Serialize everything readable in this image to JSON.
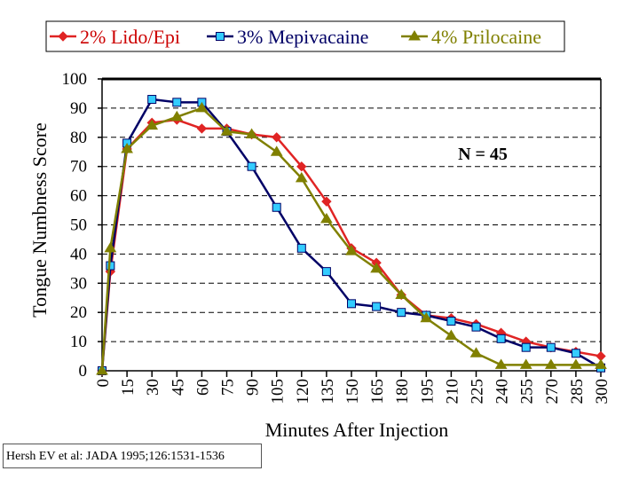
{
  "chart_data": {
    "type": "line",
    "xlabel": "Minutes After Injection",
    "ylabel": "Tongue Numbness Score",
    "ylim": [
      0,
      100
    ],
    "xlim": [
      0,
      300
    ],
    "yticks": [
      "0",
      "10",
      "20",
      "30",
      "40",
      "50",
      "60",
      "70",
      "80",
      "90",
      "100"
    ],
    "xticks": [
      "0",
      "15",
      "30",
      "45",
      "60",
      "75",
      "90",
      "105",
      "120",
      "135",
      "150",
      "165",
      "180",
      "195",
      "210",
      "225",
      "240",
      "255",
      "270",
      "285",
      "300"
    ],
    "grid": "horizontal dashed",
    "legend_position": "top",
    "annotation": "N = 45",
    "x": [
      0,
      5,
      15,
      30,
      45,
      60,
      75,
      90,
      105,
      120,
      135,
      150,
      165,
      180,
      195,
      210,
      225,
      240,
      255,
      270,
      285,
      300
    ],
    "series": [
      {
        "name": "2% Lido/Epi",
        "line_color": "#e02424",
        "marker_color": "#e02424",
        "marker": "diamond",
        "values": [
          0,
          34,
          76,
          85,
          86,
          83,
          83,
          81,
          80,
          70,
          58,
          42,
          37,
          26,
          19,
          18,
          16,
          13,
          10,
          8,
          6.5,
          5
        ]
      },
      {
        "name": "3% Mepivacaine",
        "line_color": "#000066",
        "marker_color": "#33ccff",
        "marker": "square",
        "values": [
          0,
          36,
          78,
          93,
          92,
          92,
          82,
          70,
          56,
          42,
          34,
          23,
          22,
          20,
          19,
          17,
          15,
          11,
          8,
          8,
          6,
          1
        ]
      },
      {
        "name": "4% Prilocaine",
        "line_color": "#808000",
        "marker_color": "#808000",
        "marker": "triangle",
        "values": [
          0,
          42,
          76,
          84,
          87,
          90,
          82,
          81,
          75,
          66,
          52,
          41,
          35,
          26,
          18,
          12,
          6,
          2,
          2,
          2,
          2,
          2
        ]
      }
    ]
  },
  "footer": {
    "citation": "Hersh EV et al: JADA 1995;126:1531-1536"
  }
}
